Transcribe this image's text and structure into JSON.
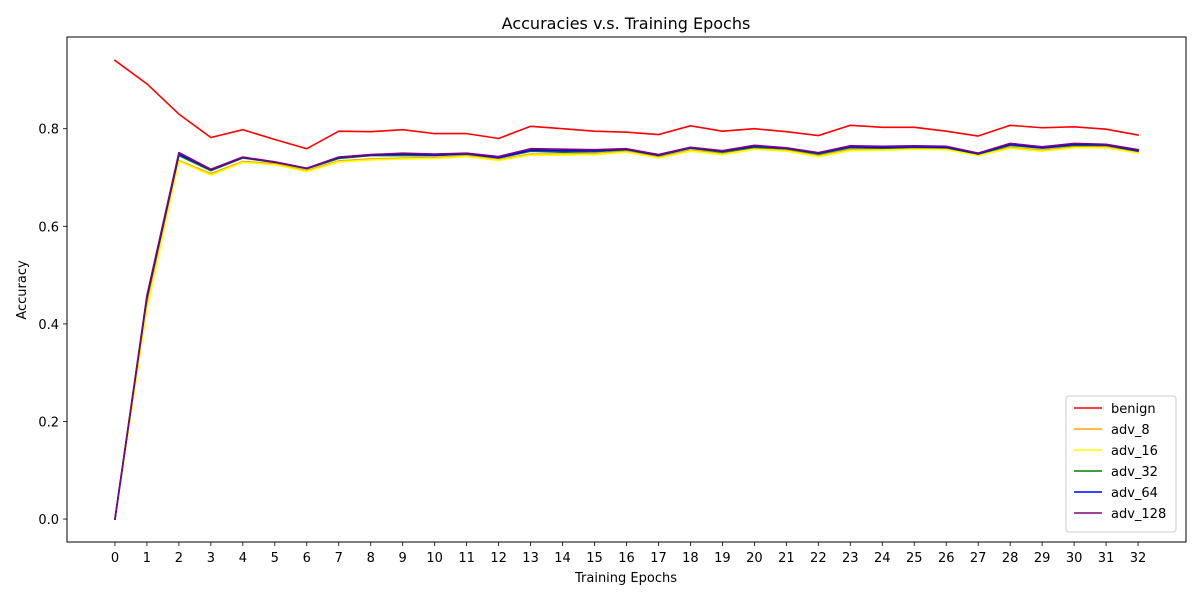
{
  "chart_data": {
    "type": "line",
    "title": "Accuracies v.s. Training Epochs",
    "xlabel": "Training Epochs",
    "ylabel": "Accuracy",
    "x": [
      0,
      1,
      2,
      3,
      4,
      5,
      6,
      7,
      8,
      9,
      10,
      11,
      12,
      13,
      14,
      15,
      16,
      17,
      18,
      19,
      20,
      21,
      22,
      23,
      24,
      25,
      26,
      27,
      28,
      29,
      30,
      31,
      32
    ],
    "xlim": [
      -1.5,
      33.5
    ],
    "ylim": [
      -0.047,
      0.988
    ],
    "yticks": [
      0.0,
      0.2,
      0.4,
      0.6,
      0.8
    ],
    "ytick_labels": [
      "0.0",
      "0.2",
      "0.4",
      "0.6",
      "0.8"
    ],
    "grid": false,
    "legend_position": "lower-right",
    "series": [
      {
        "name": "benign",
        "color": "#ff0000",
        "values": [
          0.94,
          0.892,
          0.83,
          0.782,
          0.798,
          0.778,
          0.759,
          0.795,
          0.794,
          0.798,
          0.79,
          0.79,
          0.78,
          0.805,
          0.8,
          0.795,
          0.793,
          0.788,
          0.806,
          0.795,
          0.8,
          0.794,
          0.786,
          0.807,
          0.803,
          0.803,
          0.795,
          0.785,
          0.807,
          0.802,
          0.804,
          0.799,
          0.787
        ]
      },
      {
        "name": "adv_8",
        "color": "#ffa500",
        "values": [
          0.0,
          0.44,
          0.735,
          0.708,
          0.733,
          0.728,
          0.714,
          0.734,
          0.738,
          0.74,
          0.741,
          0.745,
          0.737,
          0.748,
          0.748,
          0.749,
          0.754,
          0.742,
          0.756,
          0.749,
          0.76,
          0.756,
          0.745,
          0.757,
          0.758,
          0.76,
          0.759,
          0.747,
          0.762,
          0.756,
          0.763,
          0.763,
          0.752
        ]
      },
      {
        "name": "adv_16",
        "color": "#ffff00",
        "values": [
          0.0,
          0.43,
          0.733,
          0.705,
          0.731,
          0.726,
          0.712,
          0.732,
          0.736,
          0.738,
          0.739,
          0.743,
          0.735,
          0.746,
          0.746,
          0.747,
          0.752,
          0.74,
          0.754,
          0.747,
          0.758,
          0.754,
          0.743,
          0.755,
          0.756,
          0.758,
          0.757,
          0.745,
          0.76,
          0.754,
          0.761,
          0.761,
          0.75
        ]
      },
      {
        "name": "adv_32",
        "color": "#008000",
        "values": [
          0.0,
          0.452,
          0.745,
          0.714,
          0.74,
          0.731,
          0.718,
          0.739,
          0.745,
          0.745,
          0.745,
          0.748,
          0.74,
          0.754,
          0.752,
          0.753,
          0.757,
          0.745,
          0.76,
          0.752,
          0.762,
          0.759,
          0.748,
          0.761,
          0.76,
          0.762,
          0.761,
          0.748,
          0.766,
          0.76,
          0.766,
          0.766,
          0.754
        ]
      },
      {
        "name": "adv_64",
        "color": "#0000ff",
        "values": [
          0.0,
          0.455,
          0.748,
          0.716,
          0.741,
          0.732,
          0.719,
          0.741,
          0.746,
          0.748,
          0.746,
          0.749,
          0.741,
          0.756,
          0.755,
          0.755,
          0.758,
          0.746,
          0.761,
          0.754,
          0.764,
          0.76,
          0.75,
          0.763,
          0.762,
          0.763,
          0.762,
          0.749,
          0.768,
          0.761,
          0.768,
          0.767,
          0.755
        ]
      },
      {
        "name": "adv_128",
        "color": "#800080",
        "values": [
          0.0,
          0.458,
          0.751,
          0.717,
          0.742,
          0.732,
          0.719,
          0.742,
          0.747,
          0.75,
          0.748,
          0.75,
          0.743,
          0.759,
          0.758,
          0.757,
          0.759,
          0.747,
          0.762,
          0.755,
          0.766,
          0.761,
          0.751,
          0.765,
          0.764,
          0.765,
          0.764,
          0.75,
          0.77,
          0.763,
          0.77,
          0.768,
          0.757
        ]
      }
    ]
  }
}
